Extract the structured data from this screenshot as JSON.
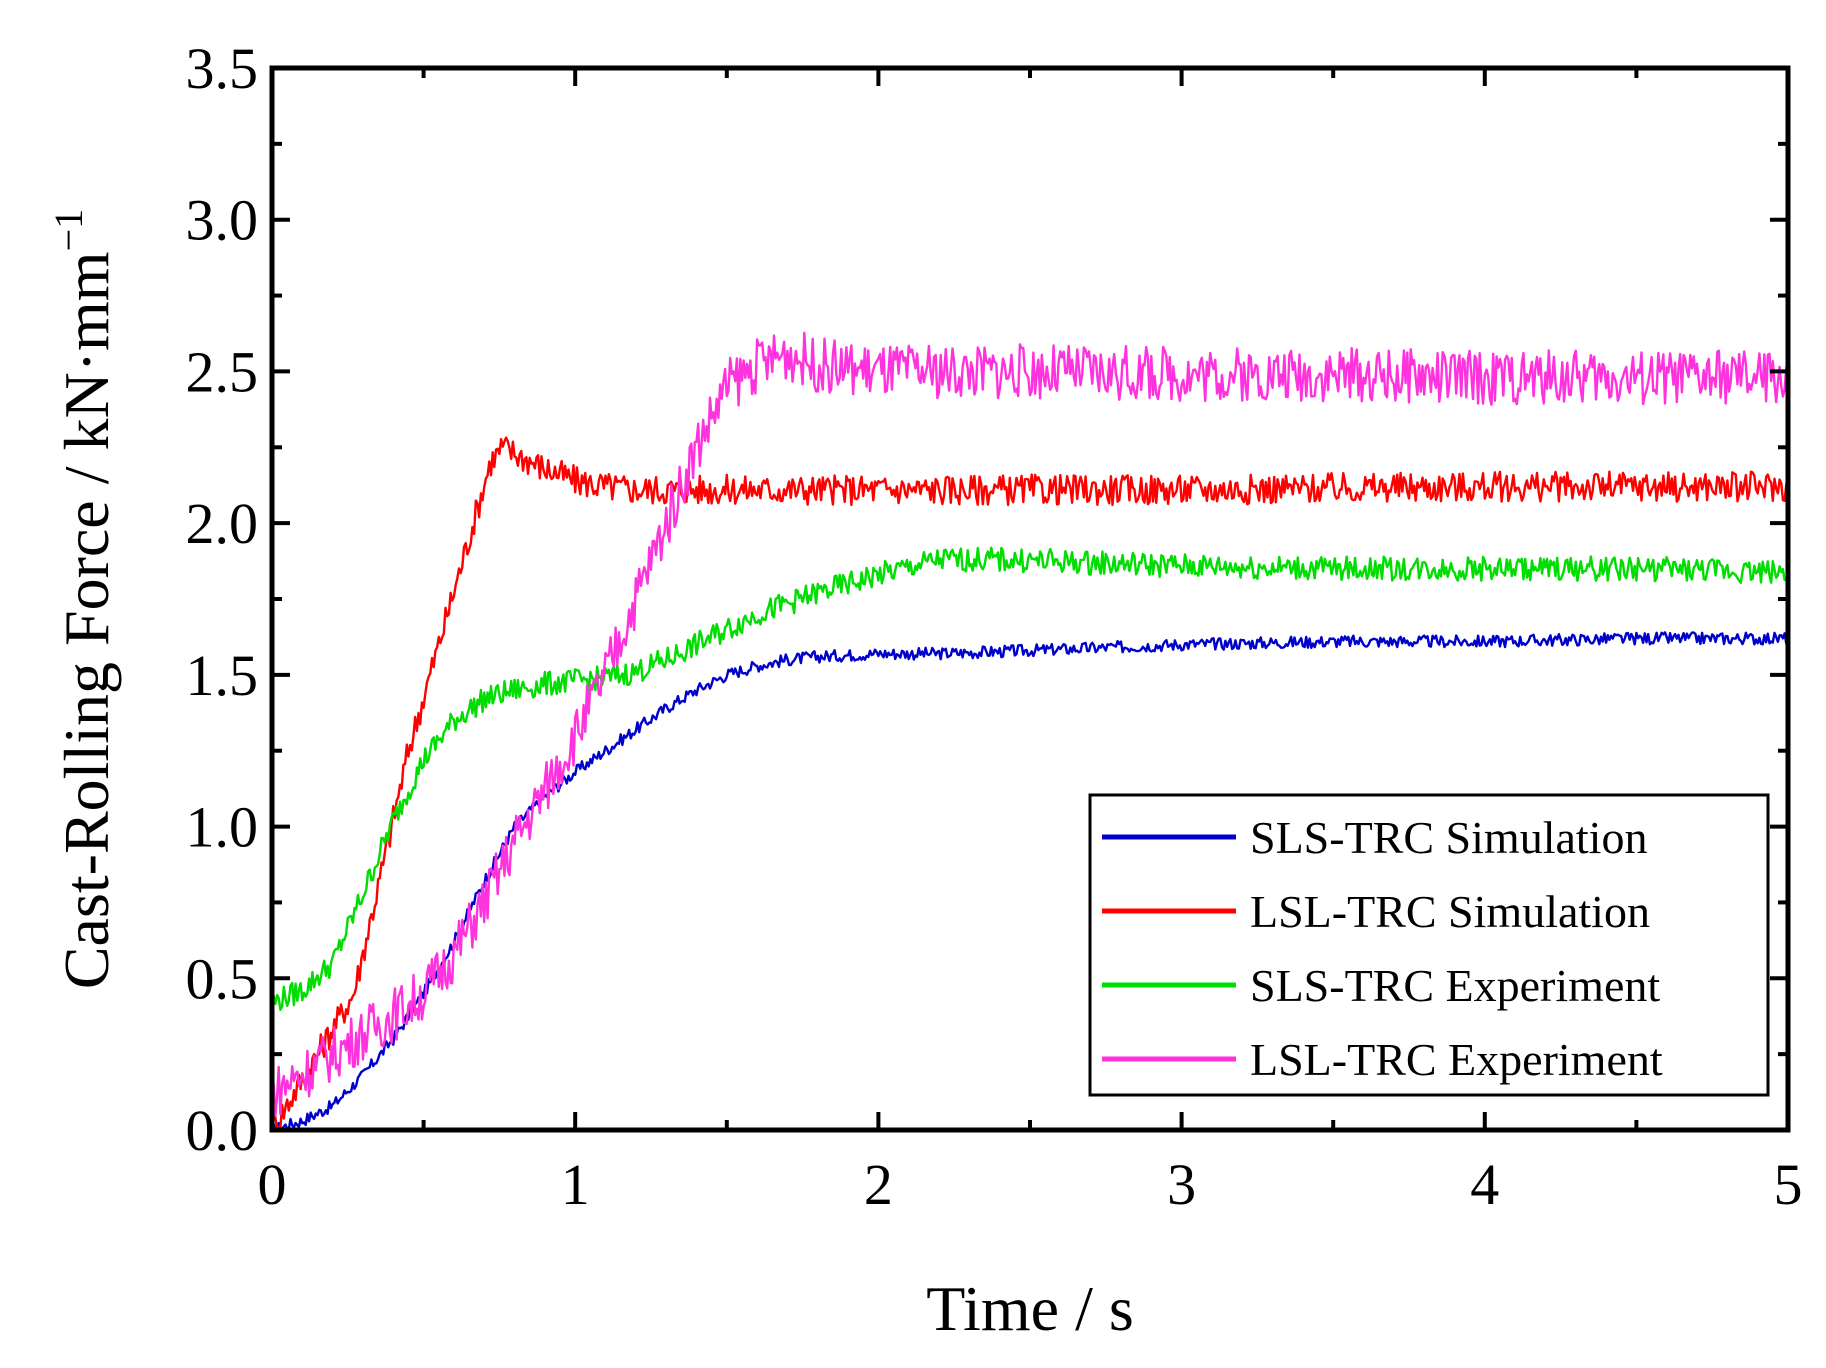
{
  "chart_data": {
    "type": "line",
    "title": "",
    "xlabel": "Time / s",
    "ylabel": "Cast-Rolling Force / kN·mm",
    "ylabel_superscript": "−1",
    "xlim": [
      0,
      5
    ],
    "ylim": [
      0,
      3.5
    ],
    "x_ticks": [
      {
        "value": 0,
        "label": "0"
      },
      {
        "value": 1,
        "label": "1"
      },
      {
        "value": 2,
        "label": "2"
      },
      {
        "value": 3,
        "label": "3"
      },
      {
        "value": 4,
        "label": "4"
      },
      {
        "value": 5,
        "label": "5"
      }
    ],
    "y_ticks": [
      {
        "value": 0.0,
        "label": "0.0"
      },
      {
        "value": 0.5,
        "label": "0.5"
      },
      {
        "value": 1.0,
        "label": "1.0"
      },
      {
        "value": 1.5,
        "label": "1.5"
      },
      {
        "value": 2.0,
        "label": "2.0"
      },
      {
        "value": 2.5,
        "label": "2.5"
      },
      {
        "value": 3.0,
        "label": "3.0"
      },
      {
        "value": 3.5,
        "label": "3.5"
      }
    ],
    "grid": false,
    "legend_position": "bottom-right",
    "series": [
      {
        "name": "SLS-TRC Simulation",
        "color": "#0000cc",
        "noise": 0.02,
        "x": [
          0,
          0.1,
          0.2,
          0.3,
          0.4,
          0.5,
          0.6,
          0.7,
          0.8,
          0.9,
          1.0,
          1.1,
          1.2,
          1.3,
          1.4,
          1.5,
          1.6,
          1.7,
          1.8,
          2.0,
          2.2,
          2.5,
          3.0,
          3.5,
          4.0,
          4.5,
          5.0
        ],
        "y": [
          0.0,
          0.03,
          0.08,
          0.18,
          0.3,
          0.45,
          0.62,
          0.82,
          1.0,
          1.1,
          1.18,
          1.25,
          1.32,
          1.39,
          1.45,
          1.5,
          1.53,
          1.55,
          1.56,
          1.57,
          1.57,
          1.58,
          1.6,
          1.61,
          1.61,
          1.62,
          1.62
        ]
      },
      {
        "name": "LSL-TRC Simulation",
        "color": "#ff0000",
        "noise": 0.05,
        "x": [
          0,
          0.27,
          0.35,
          0.45,
          0.55,
          0.65,
          0.72,
          0.76,
          0.82,
          0.9,
          1.0,
          1.1,
          1.2,
          1.3,
          1.5,
          2.0,
          3.0,
          4.0,
          5.0
        ],
        "y": [
          0.0,
          0.45,
          0.8,
          1.25,
          1.6,
          1.95,
          2.2,
          2.25,
          2.22,
          2.18,
          2.14,
          2.12,
          2.11,
          2.11,
          2.11,
          2.11,
          2.11,
          2.12,
          2.12
        ]
      },
      {
        "name": "SLS-TRC Experiment",
        "color": "#00dd00",
        "noise": 0.04,
        "x": [
          0,
          0.1,
          0.2,
          0.3,
          0.4,
          0.5,
          0.6,
          0.7,
          0.8,
          0.9,
          1.0,
          1.1,
          1.2,
          1.3,
          1.4,
          1.6,
          1.8,
          2.0,
          2.2,
          2.4,
          2.7,
          3.0,
          3.5,
          4.0,
          4.5,
          5.0
        ],
        "y": [
          0.42,
          0.46,
          0.55,
          0.78,
          1.02,
          1.22,
          1.35,
          1.42,
          1.45,
          1.47,
          1.48,
          1.49,
          1.51,
          1.55,
          1.6,
          1.7,
          1.77,
          1.83,
          1.88,
          1.88,
          1.87,
          1.86,
          1.85,
          1.85,
          1.85,
          1.84
        ]
      },
      {
        "name": "LSL-TRC Experiment",
        "color": "#ff33dd",
        "noise": 0.09,
        "x": [
          0,
          0.2,
          0.4,
          0.5,
          0.6,
          0.7,
          0.8,
          0.9,
          1.0,
          1.1,
          1.2,
          1.3,
          1.4,
          1.5,
          1.6,
          1.7,
          1.8,
          2.0,
          2.5,
          3.0,
          3.5,
          4.0,
          4.5,
          5.0
        ],
        "y": [
          0.12,
          0.25,
          0.38,
          0.45,
          0.58,
          0.75,
          0.95,
          1.12,
          1.3,
          1.5,
          1.75,
          2.0,
          2.25,
          2.45,
          2.52,
          2.56,
          2.52,
          2.5,
          2.5,
          2.49,
          2.49,
          2.48,
          2.48,
          2.48
        ]
      }
    ]
  }
}
